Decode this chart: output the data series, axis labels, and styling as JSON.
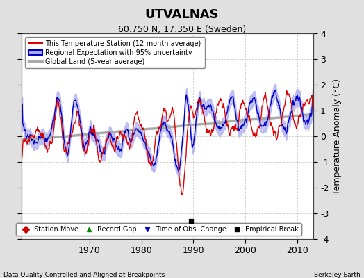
{
  "title": "UTVALNAS",
  "subtitle": "60.750 N, 17.350 E (Sweden)",
  "xlabel_left": "Data Quality Controlled and Aligned at Breakpoints",
  "xlabel_right": "Berkeley Earth",
  "ylabel": "Temperature Anomaly (°C)",
  "ylim": [
    -4,
    4
  ],
  "xlim": [
    1957,
    2013
  ],
  "xticks": [
    1970,
    1980,
    1990,
    2000,
    2010
  ],
  "yticks": [
    -4,
    -3,
    -2,
    -1,
    0,
    1,
    2,
    3,
    4
  ],
  "bg_color": "#e0e0e0",
  "plot_bg_color": "#ffffff",
  "grid_color": "#cccccc",
  "station_color": "#dd0000",
  "regional_color": "#0000cc",
  "regional_fill_color": "#aaaaee",
  "global_color": "#aaaaaa",
  "empirical_break_year": 1989.5,
  "empirical_break_value": -3.3,
  "legend_items": [
    {
      "label": "This Temperature Station (12-month average)",
      "color": "#dd0000",
      "lw": 1.5
    },
    {
      "label": "Regional Expectation with 95% uncertainty",
      "color": "#0000cc",
      "lw": 1.5
    },
    {
      "label": "Global Land (5-year average)",
      "color": "#aaaaaa",
      "lw": 2.5
    }
  ],
  "marker_legend": [
    {
      "label": "Station Move",
      "color": "#cc0000",
      "marker": "D"
    },
    {
      "label": "Record Gap",
      "color": "#008800",
      "marker": "^"
    },
    {
      "label": "Time of Obs. Change",
      "color": "#0000cc",
      "marker": "v"
    },
    {
      "label": "Empirical Break",
      "color": "#000000",
      "marker": "s"
    }
  ]
}
